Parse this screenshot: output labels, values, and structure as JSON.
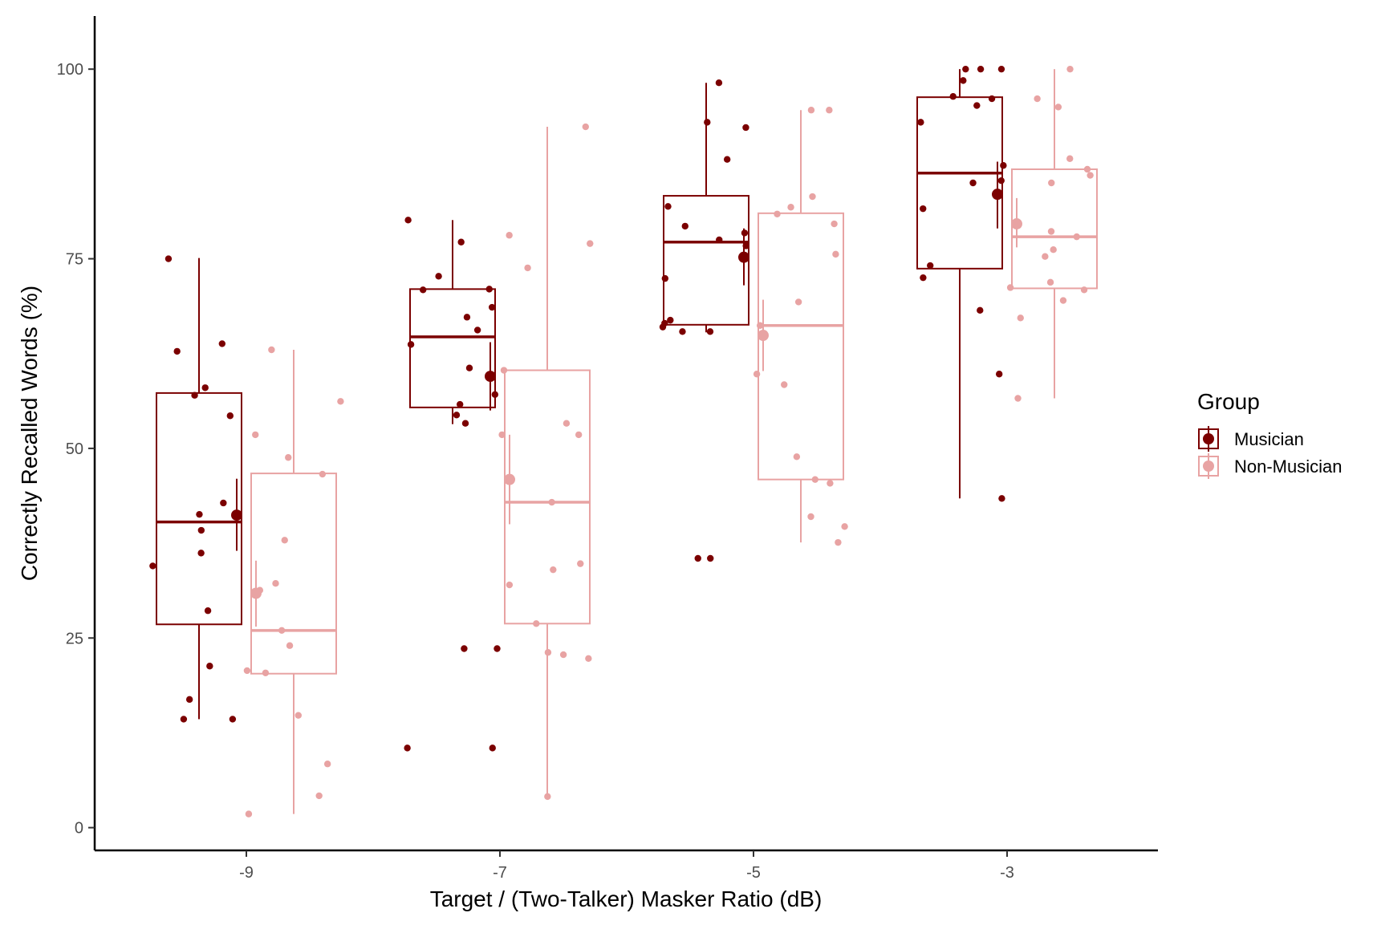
{
  "chart_data": {
    "type": "boxplot",
    "title": "",
    "xlabel": "Target / (Two-Talker) Masker Ratio (dB)",
    "ylabel": "Correctly Recalled Words (%)",
    "categories": [
      "-9",
      "-7",
      "-5",
      "-3"
    ],
    "yticks": [
      "0",
      "25",
      "50",
      "75",
      "100"
    ],
    "ylim": [
      -3,
      107
    ],
    "grid": false,
    "legend": {
      "title": "Group",
      "position": "right"
    },
    "series": [
      {
        "name": "Musician",
        "color": "#7b0000",
        "boxes": [
          {
            "min": 14.3,
            "q1": 26.8,
            "median": 40.3,
            "q3": 57.3,
            "max": 75.1
          },
          {
            "min": 53.2,
            "q1": 55.4,
            "median": 64.7,
            "q3": 71.0,
            "max": 80.1
          },
          {
            "min": 65.3,
            "q1": 66.3,
            "median": 77.2,
            "q3": 83.3,
            "max": 98.2
          },
          {
            "min": 43.4,
            "q1": 73.7,
            "median": 86.3,
            "q3": 96.3,
            "max": 100
          }
        ],
        "means": [
          {
            "mean": 41.2,
            "low": 36.5,
            "high": 46.0
          },
          {
            "mean": 59.5,
            "low": 55.0,
            "high": 64.0
          },
          {
            "mean": 75.2,
            "low": 71.5,
            "high": 79.0
          },
          {
            "mean": 83.5,
            "low": 79.0,
            "high": 87.8
          }
        ],
        "points": [
          [
            [
              75.0,
              63.8,
              58.0,
              57.0,
              62.8,
              54.3,
              42.8,
              41.3,
              39.2,
              36.2,
              34.5,
              28.6,
              21.3,
              16.9,
              14.3,
              14.3
            ]
          ],
          [
            [
              77.2,
              80.1,
              72.7,
              71.0,
              70.9,
              68.6,
              67.3,
              65.6,
              63.7,
              60.6,
              57.1,
              55.8,
              54.4,
              53.3,
              23.6,
              23.6,
              10.5,
              10.5
            ]
          ],
          [
            [
              98.2,
              93.0,
              92.3,
              88.1,
              81.9,
              79.3,
              78.4,
              77.5,
              76.7,
              72.4,
              66.9,
              66.5,
              66.0,
              65.4,
              65.4,
              35.5,
              35.5
            ]
          ],
          [
            [
              100,
              100,
              100,
              98.5,
              96.4,
              96.1,
              95.2,
              93.0,
              87.3,
              85.3,
              85.0,
              81.6,
              74.1,
              72.5,
              68.2,
              59.8,
              43.4
            ]
          ]
        ]
      },
      {
        "name": "Non-Musician",
        "color": "#e8a3a3",
        "boxes": [
          {
            "min": 1.8,
            "q1": 20.3,
            "median": 26.0,
            "q3": 46.7,
            "max": 63.0
          },
          {
            "min": 4.1,
            "q1": 26.9,
            "median": 42.9,
            "q3": 60.3,
            "max": 92.4
          },
          {
            "min": 37.6,
            "q1": 45.9,
            "median": 66.2,
            "q3": 81.0,
            "max": 94.6
          },
          {
            "min": 56.6,
            "q1": 71.1,
            "median": 77.9,
            "q3": 86.8,
            "max": 100
          }
        ],
        "means": [
          {
            "mean": 30.9,
            "low": 26.5,
            "high": 35.2
          },
          {
            "mean": 45.9,
            "low": 40.0,
            "high": 51.8
          },
          {
            "mean": 64.9,
            "low": 60.2,
            "high": 69.6
          },
          {
            "mean": 79.6,
            "low": 76.5,
            "high": 83.0
          }
        ],
        "points": [
          [
            [
              63.0,
              56.2,
              51.8,
              48.8,
              46.6,
              37.9,
              32.2,
              31.3,
              26.0,
              24.0,
              20.7,
              20.4,
              14.8,
              8.4,
              4.2,
              1.8
            ]
          ],
          [
            [
              92.4,
              78.1,
              77.0,
              73.8,
              60.3,
              53.3,
              51.8,
              51.8,
              42.9,
              34.8,
              34.0,
              32.0,
              26.9,
              23.1,
              22.3,
              22.8,
              4.1
            ]
          ],
          [
            [
              94.6,
              94.6,
              83.2,
              81.8,
              80.9,
              79.6,
              75.6,
              69.3,
              66.2,
              59.8,
              58.4,
              48.9,
              45.9,
              45.4,
              41.0,
              39.7,
              37.6
            ]
          ],
          [
            [
              100,
              96.1,
              95.0,
              88.2,
              86.8,
              86.0,
              85.0,
              78.6,
              77.9,
              76.2,
              75.3,
              71.9,
              71.2,
              70.9,
              69.5,
              67.2,
              56.6
            ]
          ]
        ]
      }
    ]
  }
}
